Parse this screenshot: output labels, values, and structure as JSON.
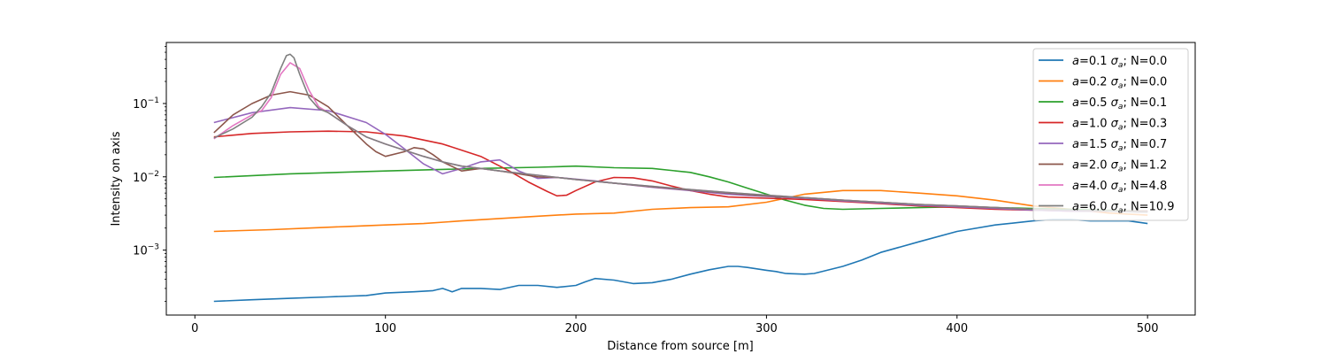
{
  "chart_data": {
    "type": "line",
    "title": "",
    "xlabel": "Distance from source [m]",
    "ylabel": "Intensity on axis",
    "xlim": [
      -15,
      525
    ],
    "ylim": [
      0.00013,
      0.68
    ],
    "yscale": "log",
    "x_ticks": [
      {
        "value": 0,
        "label": "0"
      },
      {
        "value": 100,
        "label": "100"
      },
      {
        "value": 200,
        "label": "200"
      },
      {
        "value": 300,
        "label": "300"
      },
      {
        "value": 400,
        "label": "400"
      },
      {
        "value": 500,
        "label": "500"
      }
    ],
    "y_ticks": [
      {
        "value": 0.001,
        "base": "10",
        "exp": "−3"
      },
      {
        "value": 0.01,
        "base": "10",
        "exp": "−2"
      },
      {
        "value": 0.1,
        "base": "10",
        "exp": "−1"
      }
    ],
    "grid": false,
    "legend_position": "top-right",
    "series": [
      {
        "name_math": "a",
        "name_rest": "=0.1 ",
        "name_sigma": "σ",
        "name_sub": "a",
        "name_tail": "; N=0.0",
        "color": "#1f77b4",
        "x": [
          10,
          30,
          50,
          70,
          90,
          100,
          115,
          125,
          130,
          135,
          140,
          150,
          160,
          170,
          180,
          190,
          200,
          205,
          210,
          220,
          230,
          240,
          250,
          260,
          270,
          280,
          285,
          290,
          300,
          305,
          310,
          320,
          325,
          340,
          350,
          360,
          380,
          400,
          420,
          440,
          450,
          460,
          470,
          480,
          490,
          500
        ],
        "y": [
          0.0002,
          0.00021,
          0.00022,
          0.00023,
          0.00024,
          0.00026,
          0.00027,
          0.00028,
          0.0003,
          0.00027,
          0.0003,
          0.0003,
          0.00029,
          0.00033,
          0.00033,
          0.00031,
          0.00033,
          0.00037,
          0.00041,
          0.00039,
          0.00035,
          0.00036,
          0.0004,
          0.00047,
          0.00054,
          0.0006,
          0.0006,
          0.00058,
          0.00053,
          0.00051,
          0.00048,
          0.00047,
          0.00048,
          0.0006,
          0.00073,
          0.00093,
          0.0013,
          0.0018,
          0.0022,
          0.0025,
          0.0026,
          0.0026,
          0.0025,
          0.0025,
          0.0025,
          0.0023
        ]
      },
      {
        "name_math": "a",
        "name_rest": "=0.2 ",
        "name_sigma": "σ",
        "name_sub": "a",
        "name_tail": "; N=0.0",
        "color": "#ff7f0e",
        "x": [
          10,
          40,
          60,
          80,
          100,
          120,
          140,
          160,
          180,
          200,
          220,
          240,
          260,
          280,
          300,
          320,
          340,
          360,
          380,
          400,
          420,
          440,
          460,
          480,
          500
        ],
        "y": [
          0.0018,
          0.0019,
          0.002,
          0.0021,
          0.0022,
          0.0023,
          0.0025,
          0.0027,
          0.0029,
          0.0031,
          0.0032,
          0.0036,
          0.0038,
          0.0039,
          0.0045,
          0.0058,
          0.0065,
          0.0065,
          0.006,
          0.0055,
          0.0048,
          0.004,
          0.0036,
          0.0032,
          0.003
        ]
      },
      {
        "name_math": "a",
        "name_rest": "=0.5 ",
        "name_sigma": "σ",
        "name_sub": "a",
        "name_tail": "; N=0.1",
        "color": "#2ca02c",
        "x": [
          10,
          50,
          100,
          150,
          180,
          200,
          220,
          240,
          260,
          270,
          280,
          290,
          300,
          310,
          320,
          330,
          340,
          360,
          380,
          400,
          420,
          440,
          460,
          480,
          500
        ],
        "y": [
          0.0098,
          0.011,
          0.012,
          0.013,
          0.0135,
          0.014,
          0.0133,
          0.013,
          0.0115,
          0.01,
          0.0085,
          0.007,
          0.0058,
          0.0048,
          0.0041,
          0.0037,
          0.0036,
          0.0037,
          0.0038,
          0.0039,
          0.0038,
          0.0037,
          0.0036,
          0.0035,
          0.0034
        ]
      },
      {
        "name_math": "a",
        "name_rest": "=1.0 ",
        "name_sigma": "σ",
        "name_sub": "a",
        "name_tail": "; N=0.3",
        "color": "#d62728",
        "x": [
          10,
          30,
          50,
          70,
          90,
          110,
          130,
          150,
          165,
          175,
          185,
          190,
          195,
          200,
          210,
          220,
          230,
          240,
          250,
          260,
          270,
          280,
          300,
          320,
          340,
          360,
          380,
          400,
          420,
          440,
          460,
          480,
          500
        ],
        "y": [
          0.035,
          0.039,
          0.041,
          0.042,
          0.041,
          0.036,
          0.028,
          0.019,
          0.012,
          0.0085,
          0.0063,
          0.0055,
          0.0056,
          0.0065,
          0.0085,
          0.0098,
          0.0097,
          0.0088,
          0.0075,
          0.0065,
          0.0058,
          0.0053,
          0.0051,
          0.0049,
          0.0046,
          0.0043,
          0.004,
          0.0038,
          0.0036,
          0.0035,
          0.0034,
          0.0034,
          0.0034
        ]
      },
      {
        "name_math": "a",
        "name_rest": "=1.5 ",
        "name_sigma": "σ",
        "name_sub": "a",
        "name_tail": "; N=0.7",
        "color": "#9467bd",
        "x": [
          10,
          30,
          50,
          70,
          90,
          100,
          110,
          120,
          130,
          140,
          150,
          160,
          170,
          180,
          190,
          200,
          210,
          220,
          240,
          260,
          280,
          300,
          320,
          340,
          360,
          380,
          400,
          420,
          440,
          460,
          480,
          500
        ],
        "y": [
          0.055,
          0.075,
          0.088,
          0.08,
          0.055,
          0.038,
          0.024,
          0.015,
          0.011,
          0.013,
          0.016,
          0.017,
          0.012,
          0.0095,
          0.0098,
          0.0093,
          0.0088,
          0.0082,
          0.0072,
          0.0065,
          0.0058,
          0.0054,
          0.0051,
          0.0047,
          0.0044,
          0.0041,
          0.0039,
          0.0037,
          0.0035,
          0.0034,
          0.0034,
          0.0033
        ]
      },
      {
        "name_math": "a",
        "name_rest": "=2.0 ",
        "name_sigma": "σ",
        "name_sub": "a",
        "name_tail": "; N=1.2",
        "color": "#8c564b",
        "x": [
          10,
          20,
          30,
          40,
          50,
          60,
          70,
          80,
          90,
          95,
          100,
          110,
          115,
          120,
          125,
          130,
          140,
          150,
          160,
          170,
          180,
          190,
          200,
          220,
          240,
          260,
          280,
          300,
          320,
          340,
          360,
          380,
          400,
          420,
          440,
          460,
          480,
          500
        ],
        "y": [
          0.04,
          0.07,
          0.1,
          0.13,
          0.145,
          0.13,
          0.09,
          0.05,
          0.028,
          0.022,
          0.019,
          0.022,
          0.025,
          0.024,
          0.02,
          0.016,
          0.012,
          0.013,
          0.012,
          0.011,
          0.01,
          0.0098,
          0.0092,
          0.0082,
          0.0073,
          0.0066,
          0.006,
          0.0055,
          0.0052,
          0.0048,
          0.0045,
          0.0042,
          0.004,
          0.0038,
          0.0036,
          0.0035,
          0.0034,
          0.0034
        ]
      },
      {
        "name_math": "a",
        "name_rest": "=4.0 ",
        "name_sigma": "σ",
        "name_sub": "a",
        "name_tail": "; N=4.8",
        "color": "#e377c2",
        "x": [
          10,
          20,
          30,
          35,
          40,
          45,
          50,
          55,
          60,
          65,
          70,
          80,
          90,
          100,
          110,
          120,
          130,
          140,
          150,
          160,
          180,
          200,
          220,
          240,
          260,
          280,
          300,
          320,
          340,
          360,
          380,
          400,
          420,
          440,
          460,
          480,
          500
        ],
        "y": [
          0.033,
          0.05,
          0.07,
          0.08,
          0.12,
          0.25,
          0.36,
          0.3,
          0.15,
          0.09,
          0.075,
          0.05,
          0.035,
          0.028,
          0.023,
          0.019,
          0.016,
          0.014,
          0.013,
          0.012,
          0.0105,
          0.0092,
          0.0082,
          0.0074,
          0.0067,
          0.0061,
          0.0056,
          0.0052,
          0.0048,
          0.0045,
          0.0042,
          0.004,
          0.0038,
          0.0036,
          0.0035,
          0.0034,
          0.0033
        ]
      },
      {
        "name_math": "a",
        "name_rest": "=6.0 ",
        "name_sigma": "σ",
        "name_sub": "a",
        "name_tail": "; N=10.9",
        "color": "#7f7f7f",
        "x": [
          10,
          20,
          30,
          35,
          40,
          45,
          48,
          50,
          52,
          55,
          60,
          65,
          70,
          80,
          90,
          100,
          110,
          120,
          130,
          140,
          150,
          160,
          180,
          200,
          220,
          240,
          260,
          280,
          300,
          320,
          340,
          360,
          380,
          400,
          420,
          440,
          460,
          480,
          500
        ],
        "y": [
          0.034,
          0.045,
          0.065,
          0.09,
          0.14,
          0.3,
          0.45,
          0.47,
          0.42,
          0.25,
          0.12,
          0.085,
          0.075,
          0.05,
          0.035,
          0.028,
          0.023,
          0.019,
          0.016,
          0.014,
          0.013,
          0.012,
          0.0105,
          0.0092,
          0.0082,
          0.0074,
          0.0067,
          0.0061,
          0.0056,
          0.0052,
          0.0048,
          0.0045,
          0.0042,
          0.004,
          0.0038,
          0.0036,
          0.0035,
          0.0034,
          0.0033
        ]
      }
    ]
  }
}
